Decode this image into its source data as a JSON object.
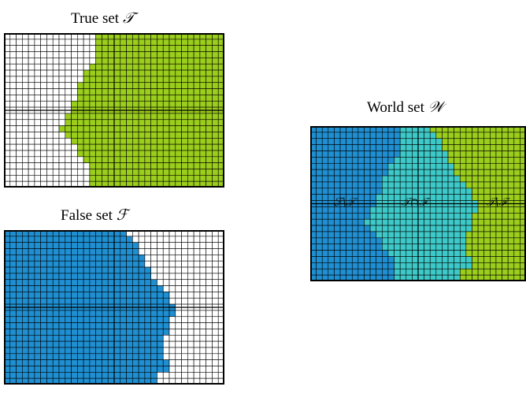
{
  "panels": {
    "true_set": {
      "title": "True set",
      "symbol": "𝒯"
    },
    "false_set": {
      "title": "False set",
      "symbol": "ℱ"
    },
    "world_set": {
      "title": "World set",
      "symbol": "𝒲"
    }
  },
  "region_labels": {
    "false_minus_true": "ℱ\\𝒯",
    "true_and_false": "𝒯∩ℱ",
    "true_minus_false": "𝒯\\ℱ"
  },
  "colors": {
    "true_fill": "#9acd1c",
    "false_fill": "#1f8fd2",
    "overlap_fill": "#3ec9c9",
    "empty_fill": "#ffffff",
    "grid_line": "#000000"
  },
  "grid": {
    "columns": 36,
    "rows": 25
  },
  "true_left_boundary": [
    15,
    15,
    15,
    15,
    15,
    14,
    13,
    13,
    12,
    12,
    12,
    11,
    11,
    10,
    10,
    9,
    10,
    11,
    12,
    12,
    13,
    14,
    14,
    14,
    14
  ],
  "false_right_boundary": [
    20,
    21,
    22,
    22,
    23,
    23,
    24,
    24,
    25,
    26,
    27,
    27,
    28,
    28,
    27,
    27,
    27,
    26,
    26,
    26,
    26,
    27,
    27,
    25,
    25
  ]
}
